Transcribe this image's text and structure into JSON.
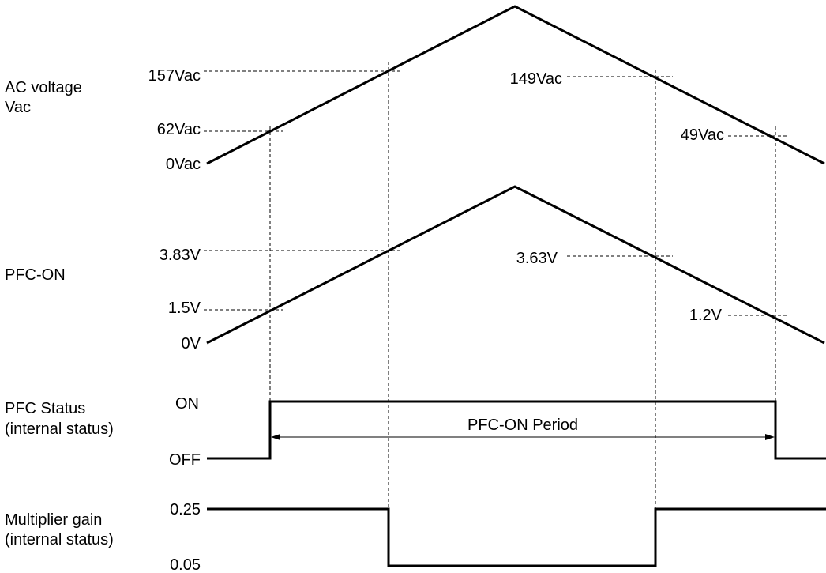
{
  "signals": {
    "ac_voltage": {
      "name_line1": "AC voltage",
      "name_line2": "Vac",
      "levels": {
        "zero": "0Vac",
        "rise_on": "62Vac",
        "rise_gain": "157Vac",
        "fall_gain": "149Vac",
        "fall_off": "49Vac"
      }
    },
    "pfc_on": {
      "name": "PFC-ON",
      "levels": {
        "zero": "0V",
        "rise_on": "1.5V",
        "rise_gain": "3.83V",
        "fall_gain": "3.63V",
        "fall_off": "1.2V"
      }
    },
    "pfc_status": {
      "name_line1": "PFC Status",
      "name_line2": "(internal status)",
      "state_high": "ON",
      "state_low": "OFF",
      "period_label": "PFC-ON Period"
    },
    "multiplier_gain": {
      "name_line1": "Multiplier gain",
      "name_line2": "(internal status)",
      "level_high": "0.25",
      "level_low": "0.05"
    }
  },
  "colors": {
    "trace": "#000000",
    "background": "#ffffff"
  }
}
